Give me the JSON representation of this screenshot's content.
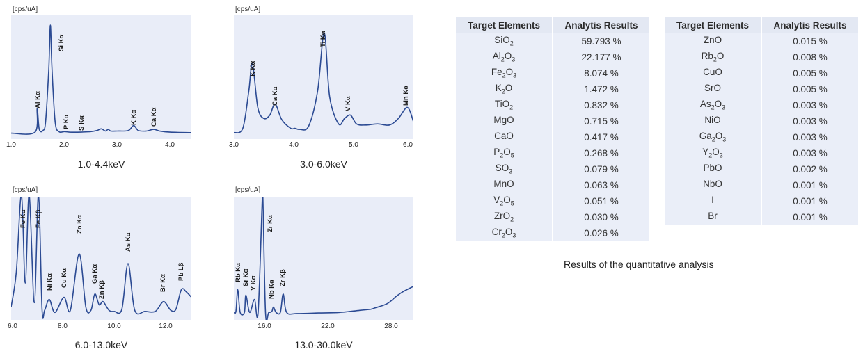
{
  "spectra": [
    {
      "unit_label": "[cps/uA]",
      "range_label": "1.0-4.4keV",
      "x_ticks": [
        "1.0",
        "2.0",
        "3.0",
        "4.0"
      ],
      "peak_labels": [
        "Al Kα",
        "Si Kα",
        "P Kα",
        "S Kα",
        "K Kα",
        "Ca Kα"
      ]
    },
    {
      "unit_label": "[cps/uA]",
      "range_label": "3.0-6.0keV",
      "x_ticks": [
        "3.0",
        "4.0",
        "5.0",
        "6.0"
      ],
      "peak_labels": [
        "K Kα",
        "Ca Kα",
        "Ti Kα",
        "V Kα",
        "Mn Kα"
      ]
    },
    {
      "unit_label": "[cps/uA]",
      "range_label": "6.0-13.0keV",
      "x_ticks": [
        "6.0",
        "8.0",
        "10.0",
        "12.0"
      ],
      "peak_labels": [
        "Fe Kα",
        "Fe Kβ",
        "Ni Kα",
        "Cu Kα",
        "Zn Kα",
        "Ga Kα",
        "Zn Kβ",
        "As Kα",
        "Br Kα",
        "Pb Lβ"
      ]
    },
    {
      "unit_label": "[cps/uA]",
      "range_label": "13.0-30.0keV",
      "x_ticks": [
        "16.0",
        "22.0",
        "28.0"
      ],
      "peak_labels": [
        "Rb Kα",
        "Sr Kα",
        "Y Kα",
        "Zr Kα",
        "Nb Kα",
        "Zr Kβ"
      ]
    }
  ],
  "chart_data": [
    {
      "type": "line",
      "x_range": [
        1.0,
        4.4
      ],
      "y_range": [
        0,
        100
      ],
      "grid": false,
      "series": [
        {
          "x": [
            1.0,
            1.45,
            1.49,
            1.53,
            1.6,
            1.65,
            1.71,
            1.74,
            1.77,
            1.83,
            1.9,
            2.01,
            2.1,
            2.31,
            2.5,
            2.62,
            2.7,
            2.78,
            2.83,
            2.88,
            3.0,
            3.21,
            3.31,
            3.4,
            3.55,
            3.69,
            3.8,
            4.0,
            4.4
          ],
          "y": [
            1.5,
            2.5,
            24,
            5,
            4,
            12,
            60,
            100,
            60,
            12,
            3,
            3,
            2.5,
            2.5,
            3,
            4,
            5.5,
            3.5,
            5,
            3.5,
            3.5,
            4,
            8.5,
            4,
            3.5,
            5,
            3.5,
            2.5,
            2
          ]
        }
      ]
    },
    {
      "type": "line",
      "x_range": [
        3.0,
        6.0
      ],
      "y_range": [
        0,
        100
      ],
      "grid": false,
      "series": [
        {
          "x": [
            3.0,
            3.15,
            3.25,
            3.31,
            3.4,
            3.5,
            3.6,
            3.69,
            3.8,
            3.95,
            4.02,
            4.1,
            4.25,
            4.4,
            4.51,
            4.6,
            4.75,
            4.85,
            4.95,
            5.05,
            5.2,
            5.4,
            5.6,
            5.75,
            5.9,
            6.0
          ],
          "y": [
            2,
            6,
            40,
            65,
            25,
            15,
            18,
            28,
            14,
            6,
            6,
            5,
            8,
            40,
            93,
            35,
            10,
            15,
            18,
            10,
            9,
            10,
            9,
            15,
            25,
            12
          ]
        }
      ]
    },
    {
      "type": "line",
      "x_range": [
        6.0,
        13.0
      ],
      "y_range": [
        0,
        100
      ],
      "grid": false,
      "series": [
        {
          "x": [
            6.0,
            6.2,
            6.4,
            6.55,
            6.7,
            6.9,
            7.06,
            7.2,
            7.3,
            7.48,
            7.7,
            8.05,
            8.3,
            8.64,
            8.9,
            9.1,
            9.25,
            9.42,
            9.57,
            9.8,
            10.0,
            10.3,
            10.54,
            10.8,
            11.2,
            11.6,
            11.92,
            12.2,
            12.4,
            12.61,
            12.8,
            13.0
          ],
          "y": [
            8,
            40,
            120,
            30,
            120,
            12,
            120,
            6,
            5,
            15,
            3,
            17,
            5,
            57,
            8,
            5,
            20,
            10,
            13,
            5,
            4,
            6,
            48,
            5,
            4,
            4,
            13,
            5,
            6,
            24,
            22,
            17
          ]
        }
      ]
    },
    {
      "type": "line",
      "x_range": [
        13.0,
        30.0
      ],
      "y_range": [
        0,
        100
      ],
      "grid": false,
      "series": [
        {
          "x": [
            13.0,
            13.2,
            13.37,
            13.6,
            14.0,
            14.14,
            14.5,
            14.95,
            15.3,
            15.7,
            15.75,
            16.0,
            16.3,
            16.6,
            16.75,
            17.0,
            17.4,
            17.67,
            18.0,
            19.0,
            21.0,
            23.0,
            25.0,
            26.0,
            26.3,
            27.5,
            28.4,
            29.0,
            30.0
          ],
          "y": [
            3,
            4,
            24,
            3,
            3,
            19,
            3,
            15,
            3,
            110,
            110,
            3,
            3,
            4,
            8,
            3,
            3,
            20,
            3,
            2,
            2.5,
            3,
            5,
            6,
            7,
            11,
            18,
            22,
            27
          ]
        }
      ]
    }
  ],
  "results_left": {
    "header": [
      "Target Elements",
      "Analytis Results"
    ],
    "rows": [
      {
        "pre": "SiO",
        "sub1": "2",
        "mid": "",
        "sub2": "",
        "value": "59.793 %"
      },
      {
        "pre": "Al",
        "sub1": "2",
        "mid": "O",
        "sub2": "3",
        "value": "22.177 %"
      },
      {
        "pre": "Fe",
        "sub1": "2",
        "mid": "O",
        "sub2": "3",
        "value": "8.074 %"
      },
      {
        "pre": "K",
        "sub1": "2",
        "mid": "O",
        "sub2": "",
        "value": "1.472 %"
      },
      {
        "pre": "TiO",
        "sub1": "2",
        "mid": "",
        "sub2": "",
        "value": "0.832 %"
      },
      {
        "pre": "MgO",
        "sub1": "",
        "mid": "",
        "sub2": "",
        "value": "0.715 %"
      },
      {
        "pre": "CaO",
        "sub1": "",
        "mid": "",
        "sub2": "",
        "value": "0.417 %"
      },
      {
        "pre": "P",
        "sub1": "2",
        "mid": "O",
        "sub2": "5",
        "value": "0.268 %"
      },
      {
        "pre": "SO",
        "sub1": "3",
        "mid": "",
        "sub2": "",
        "value": "0.079 %"
      },
      {
        "pre": "MnO",
        "sub1": "",
        "mid": "",
        "sub2": "",
        "value": "0.063 %"
      },
      {
        "pre": "V",
        "sub1": "2",
        "mid": "O",
        "sub2": "5",
        "value": "0.051 %"
      },
      {
        "pre": "ZrO",
        "sub1": "2",
        "mid": "",
        "sub2": "",
        "value": "0.030 %"
      },
      {
        "pre": "Cr",
        "sub1": "2",
        "mid": "O",
        "sub2": "3",
        "value": "0.026 %"
      }
    ]
  },
  "results_right": {
    "header": [
      "Target Elements",
      "Analytis Results"
    ],
    "rows": [
      {
        "pre": "ZnO",
        "sub1": "",
        "mid": "",
        "sub2": "",
        "value": "0.015 %"
      },
      {
        "pre": "Rb",
        "sub1": "2",
        "mid": "O",
        "sub2": "",
        "value": "0.008 %"
      },
      {
        "pre": "CuO",
        "sub1": "",
        "mid": "",
        "sub2": "",
        "value": "0.005 %"
      },
      {
        "pre": "SrO",
        "sub1": "",
        "mid": "",
        "sub2": "",
        "value": "0.005 %"
      },
      {
        "pre": "As",
        "sub1": "2",
        "mid": "O",
        "sub2": "3",
        "value": "0.003 %"
      },
      {
        "pre": "NiO",
        "sub1": "",
        "mid": "",
        "sub2": "",
        "value": "0.003 %"
      },
      {
        "pre": "Ga",
        "sub1": "2",
        "mid": "O",
        "sub2": "3",
        "value": "0.003 %"
      },
      {
        "pre": "Y",
        "sub1": "2",
        "mid": "O",
        "sub2": "3",
        "value": "0.003 %"
      },
      {
        "pre": "PbO",
        "sub1": "",
        "mid": "",
        "sub2": "",
        "value": "0.002 %"
      },
      {
        "pre": "NbO",
        "sub1": "",
        "mid": "",
        "sub2": "",
        "value": "0.001 %"
      },
      {
        "pre": "I",
        "sub1": "",
        "mid": "",
        "sub2": "",
        "value": "0.001 %"
      },
      {
        "pre": "Br",
        "sub1": "",
        "mid": "",
        "sub2": "",
        "value": "0.001 %"
      }
    ]
  },
  "caption": "Results of the quantitative analysis",
  "colors": {
    "line": "#2b4a93",
    "plot_bg": "#e9edf8",
    "table_header": "#e3e8f3",
    "table_cell": "#eaeef8"
  }
}
